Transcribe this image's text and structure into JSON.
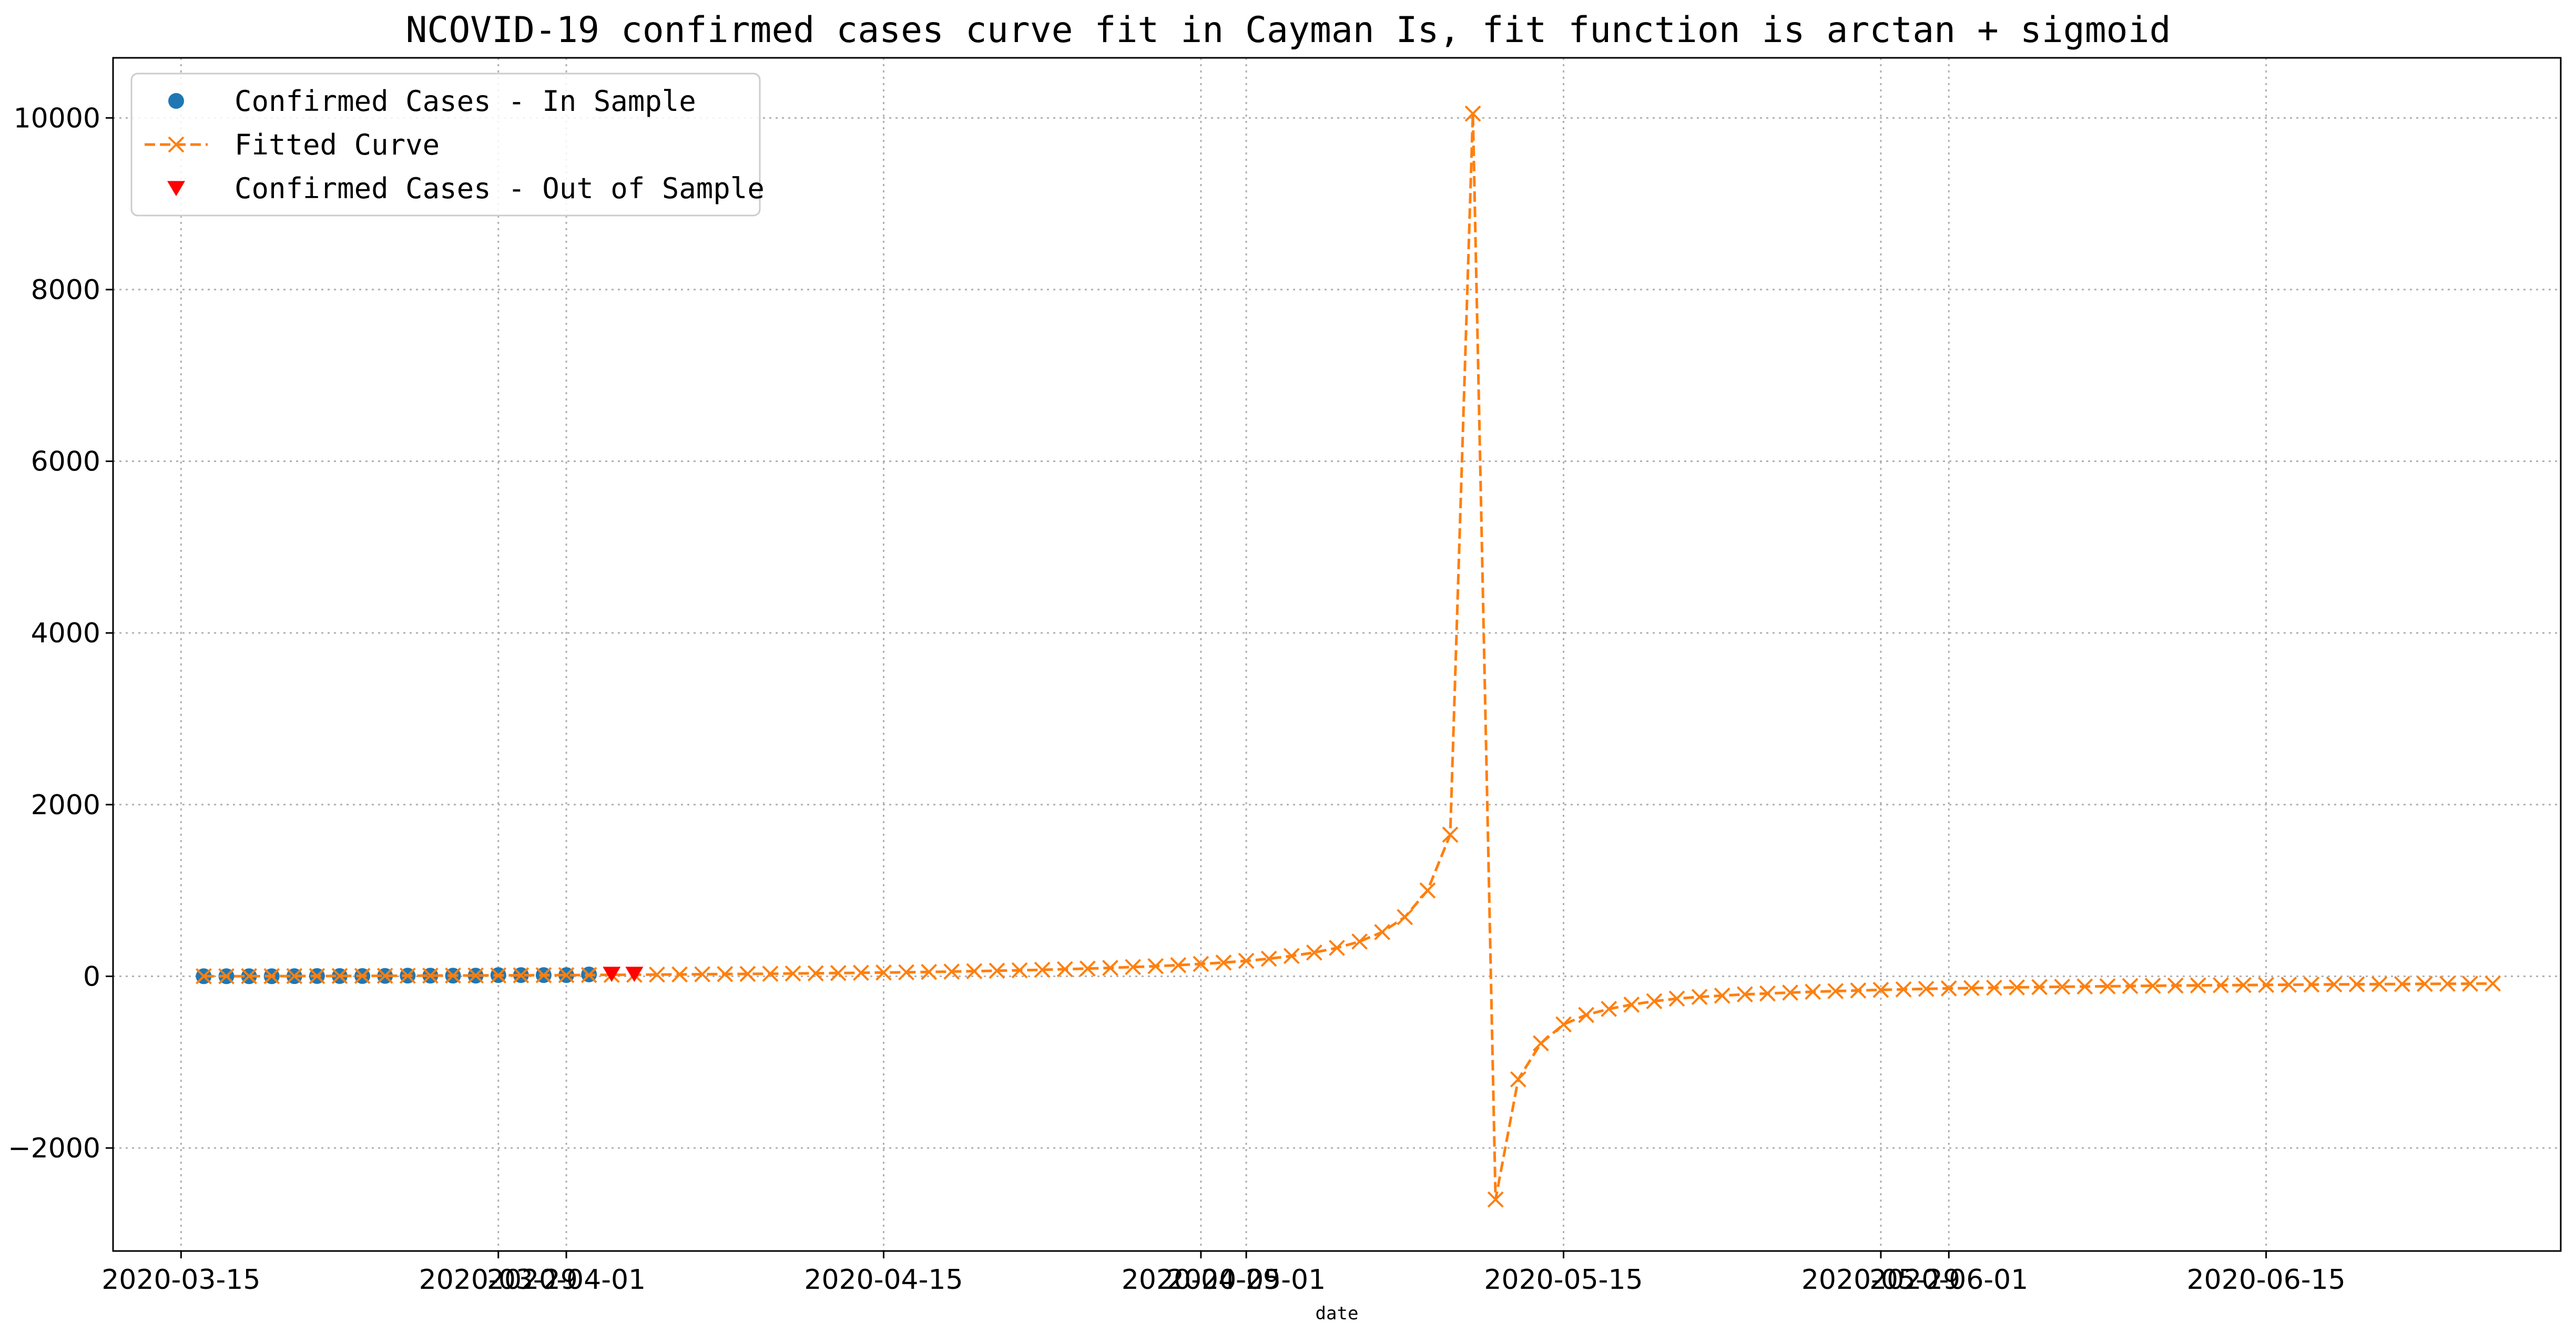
{
  "chart_data": {
    "type": "line",
    "title": "NCOVID-19 confirmed cases curve fit in Cayman Is, fit function is arctan + sigmoid",
    "xlabel": "date",
    "ylabel": "",
    "x_ticks": [
      {
        "date": "2020-03-15",
        "label": "2020-03-15"
      },
      {
        "date": "2020-03-29",
        "label": "2020-03-29"
      },
      {
        "date": "2020-04-01",
        "label": "2020-04-01"
      },
      {
        "date": "2020-04-15",
        "label": "2020-04-15"
      },
      {
        "date": "2020-04-29",
        "label": "2020-04-29"
      },
      {
        "date": "2020-05-01",
        "label": "2020-05-01"
      },
      {
        "date": "2020-05-15",
        "label": "2020-05-15"
      },
      {
        "date": "2020-05-29",
        "label": "2020-05-29"
      },
      {
        "date": "2020-06-01",
        "label": "2020-06-01"
      },
      {
        "date": "2020-06-15",
        "label": "2020-06-15"
      }
    ],
    "y_ticks": [
      -2000,
      0,
      2000,
      4000,
      6000,
      8000,
      10000
    ],
    "xlim": [
      "2020-03-12",
      "2020-06-28"
    ],
    "ylim": [
      -3200,
      10700
    ],
    "grid": true,
    "legend_position": "top-left",
    "colors": {
      "in_sample": "#1f77b4",
      "fitted": "#ff7f0e",
      "out_sample": "#ff0000",
      "grid": "#b0b0b0"
    },
    "legend": [
      {
        "label": "Confirmed Cases - In Sample",
        "marker": "circle"
      },
      {
        "label": "Fitted Curve",
        "marker": "x-dashed"
      },
      {
        "label": "Confirmed Cases - Out of Sample",
        "marker": "triangle-down"
      }
    ],
    "series": [
      {
        "name": "Confirmed Cases - In Sample",
        "style": "circle",
        "x": [
          "2020-03-16",
          "2020-03-17",
          "2020-03-18",
          "2020-03-19",
          "2020-03-20",
          "2020-03-21",
          "2020-03-22",
          "2020-03-23",
          "2020-03-24",
          "2020-03-25",
          "2020-03-26",
          "2020-03-27",
          "2020-03-28",
          "2020-03-29",
          "2020-03-30",
          "2020-03-31",
          "2020-04-01",
          "2020-04-02"
        ],
        "y": [
          1,
          1,
          1,
          1,
          2,
          3,
          3,
          3,
          5,
          8,
          8,
          8,
          8,
          14,
          14,
          14,
          14,
          22
        ]
      },
      {
        "name": "Confirmed Cases - Out of Sample",
        "style": "triangle",
        "x": [
          "2020-04-03",
          "2020-04-04"
        ],
        "y": [
          28,
          28
        ]
      },
      {
        "name": "Fitted Curve",
        "style": "x-dashed",
        "x": [
          "2020-03-16",
          "2020-03-17",
          "2020-03-18",
          "2020-03-19",
          "2020-03-20",
          "2020-03-21",
          "2020-03-22",
          "2020-03-23",
          "2020-03-24",
          "2020-03-25",
          "2020-03-26",
          "2020-03-27",
          "2020-03-28",
          "2020-03-29",
          "2020-03-30",
          "2020-03-31",
          "2020-04-01",
          "2020-04-02",
          "2020-04-03",
          "2020-04-04",
          "2020-04-05",
          "2020-04-06",
          "2020-04-07",
          "2020-04-08",
          "2020-04-09",
          "2020-04-10",
          "2020-04-11",
          "2020-04-12",
          "2020-04-13",
          "2020-04-14",
          "2020-04-15",
          "2020-04-16",
          "2020-04-17",
          "2020-04-18",
          "2020-04-19",
          "2020-04-20",
          "2020-04-21",
          "2020-04-22",
          "2020-04-23",
          "2020-04-24",
          "2020-04-25",
          "2020-04-26",
          "2020-04-27",
          "2020-04-28",
          "2020-04-29",
          "2020-04-30",
          "2020-05-01",
          "2020-05-02",
          "2020-05-03",
          "2020-05-04",
          "2020-05-05",
          "2020-05-06",
          "2020-05-07",
          "2020-05-08",
          "2020-05-09",
          "2020-05-10",
          "2020-05-11",
          "2020-05-12",
          "2020-05-13",
          "2020-05-14",
          "2020-05-15",
          "2020-05-16",
          "2020-05-17",
          "2020-05-18",
          "2020-05-19",
          "2020-05-20",
          "2020-05-21",
          "2020-05-22",
          "2020-05-23",
          "2020-05-24",
          "2020-05-25",
          "2020-05-26",
          "2020-05-27",
          "2020-05-28",
          "2020-05-29",
          "2020-05-30",
          "2020-05-31",
          "2020-06-01",
          "2020-06-02",
          "2020-06-03",
          "2020-06-04",
          "2020-06-05",
          "2020-06-06",
          "2020-06-07",
          "2020-06-08",
          "2020-06-09",
          "2020-06-10",
          "2020-06-11",
          "2020-06-12",
          "2020-06-13",
          "2020-06-14",
          "2020-06-15",
          "2020-06-16",
          "2020-06-17",
          "2020-06-18",
          "2020-06-19",
          "2020-06-20",
          "2020-06-21",
          "2020-06-22",
          "2020-06-23",
          "2020-06-24",
          "2020-06-25"
        ],
        "y": [
          1,
          1,
          2,
          2,
          3,
          3,
          4,
          5,
          6,
          7,
          8,
          9,
          10,
          11,
          12,
          13,
          14,
          15,
          17,
          18,
          20,
          22,
          24,
          26,
          28,
          30,
          33,
          35,
          38,
          41,
          44,
          47,
          51,
          55,
          60,
          65,
          70,
          76,
          83,
          90,
          98,
          108,
          118,
          130,
          144,
          160,
          180,
          205,
          237,
          277,
          331,
          405,
          515,
          690,
          1000,
          1650,
          10050,
          -2600,
          -1200,
          -780,
          -560,
          -450,
          -380,
          -330,
          -290,
          -260,
          -240,
          -225,
          -210,
          -200,
          -190,
          -180,
          -172,
          -165,
          -158,
          -152,
          -146,
          -141,
          -137,
          -133,
          -129,
          -125,
          -122,
          -119,
          -116,
          -113,
          -110,
          -108,
          -106,
          -104,
          -102,
          -100,
          -98,
          -96,
          -94,
          -93,
          -91,
          -90,
          -88,
          -87,
          -86,
          -84
        ]
      }
    ]
  }
}
